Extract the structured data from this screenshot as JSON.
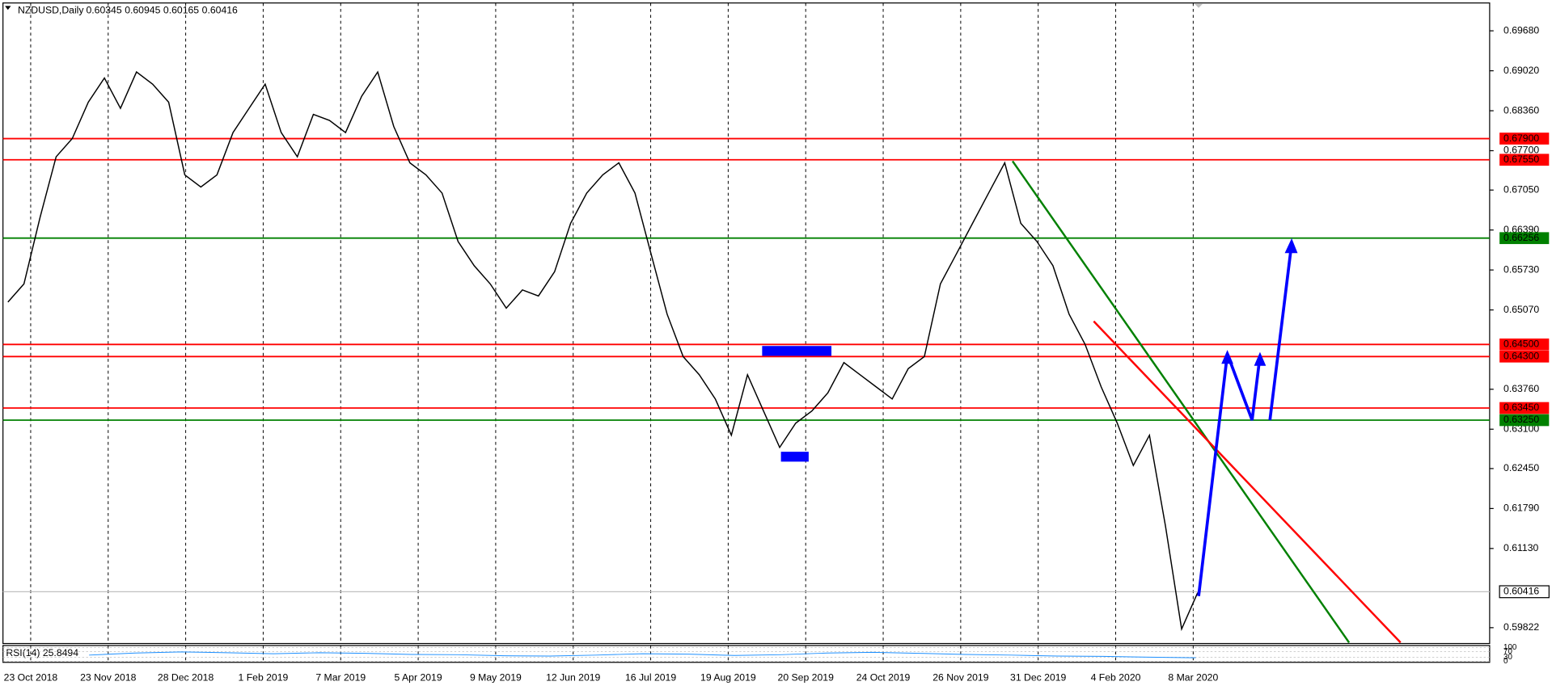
{
  "chart_data": {
    "type": "line",
    "title": "NZDUSD,Daily",
    "ohlc": [
      0.60345,
      0.60945,
      0.60165,
      0.60416
    ],
    "color": "#000000",
    "values": [
      0.652,
      0.655,
      0.666,
      0.676,
      0.679,
      0.685,
      0.689,
      0.684,
      0.69,
      0.688,
      0.685,
      0.673,
      0.671,
      0.673,
      0.68,
      0.684,
      0.688,
      0.68,
      0.676,
      0.683,
      0.682,
      0.68,
      0.686,
      0.69,
      0.681,
      0.675,
      0.673,
      0.67,
      0.662,
      0.658,
      0.655,
      0.651,
      0.654,
      0.653,
      0.657,
      0.665,
      0.67,
      0.673,
      0.675,
      0.67,
      0.66,
      0.65,
      0.643,
      0.64,
      0.636,
      0.63,
      0.64,
      0.634,
      0.628,
      0.632,
      0.634,
      0.637,
      0.642,
      0.64,
      0.638,
      0.636,
      0.641,
      0.643,
      0.655,
      0.66,
      0.665,
      0.67,
      0.675,
      0.665,
      0.662,
      0.658,
      0.65,
      0.645,
      0.638,
      0.632,
      0.625,
      0.63,
      0.615,
      0.598,
      0.604
    ],
    "ylim": [
      0.5956,
      0.7014
    ],
    "yticks": [
      {
        "value": 0.6968,
        "label": "0.69680"
      },
      {
        "value": 0.6902,
        "label": "0.69020"
      },
      {
        "value": 0.6836,
        "label": "0.68360"
      },
      {
        "value": 0.677,
        "label": "0.67700"
      },
      {
        "value": 0.6705,
        "label": "0.67050"
      },
      {
        "value": 0.6639,
        "label": "0.66390"
      },
      {
        "value": 0.6573,
        "label": "0.65730"
      },
      {
        "value": 0.6507,
        "label": "0.65070"
      },
      {
        "value": 0.6376,
        "label": "0.63760"
      },
      {
        "value": 0.631,
        "label": "0.63100"
      },
      {
        "value": 0.6245,
        "label": "0.62450"
      },
      {
        "value": 0.6179,
        "label": "0.61790"
      },
      {
        "value": 0.6113,
        "label": "0.61130"
      },
      {
        "value": 0.59822,
        "label": "0.59822"
      }
    ],
    "levels": [
      {
        "value": 0.679,
        "label": "0.67900",
        "color": "#ff0000"
      },
      {
        "value": 0.6755,
        "label": "0.67550",
        "color": "#ff0000"
      },
      {
        "value": 0.66256,
        "label": "0.66256",
        "color": "#008000"
      },
      {
        "value": 0.645,
        "label": "0.64500",
        "color": "#ff0000"
      },
      {
        "value": 0.643,
        "label": "0.64300",
        "color": "#ff0000"
      },
      {
        "value": 0.6345,
        "label": "0.63450",
        "color": "#ff0000"
      },
      {
        "value": 0.6325,
        "label": "0.63250",
        "color": "#008000"
      },
      {
        "value": 0.60416,
        "label": "0.60416",
        "color": "#c0c0c0"
      }
    ],
    "xticks": [
      "23 Oct 2018",
      "23 Nov 2018",
      "28 Dec 2018",
      "1 Feb 2019",
      "7 Mar 2019",
      "5 Apr 2019",
      "9 May 2019",
      "12 Jun 2019",
      "16 Jul 2019",
      "19 Aug 2019",
      "20 Sep 2019",
      "24 Oct 2019",
      "26 Nov 2019",
      "31 Dec 2019",
      "4 Feb 2020",
      "8 Mar 2020"
    ],
    "rsi": {
      "label": "RSI(14) 25.8494",
      "color": "#1e90ff",
      "ylim": [
        0,
        100
      ],
      "yticks": [
        100,
        70,
        30,
        0
      ],
      "values": [
        45,
        60,
        68,
        62,
        55,
        62,
        58,
        50,
        48,
        40,
        38,
        45,
        55,
        52,
        42,
        48,
        60,
        65,
        58,
        50,
        45,
        38,
        36,
        30,
        26
      ]
    }
  }
}
